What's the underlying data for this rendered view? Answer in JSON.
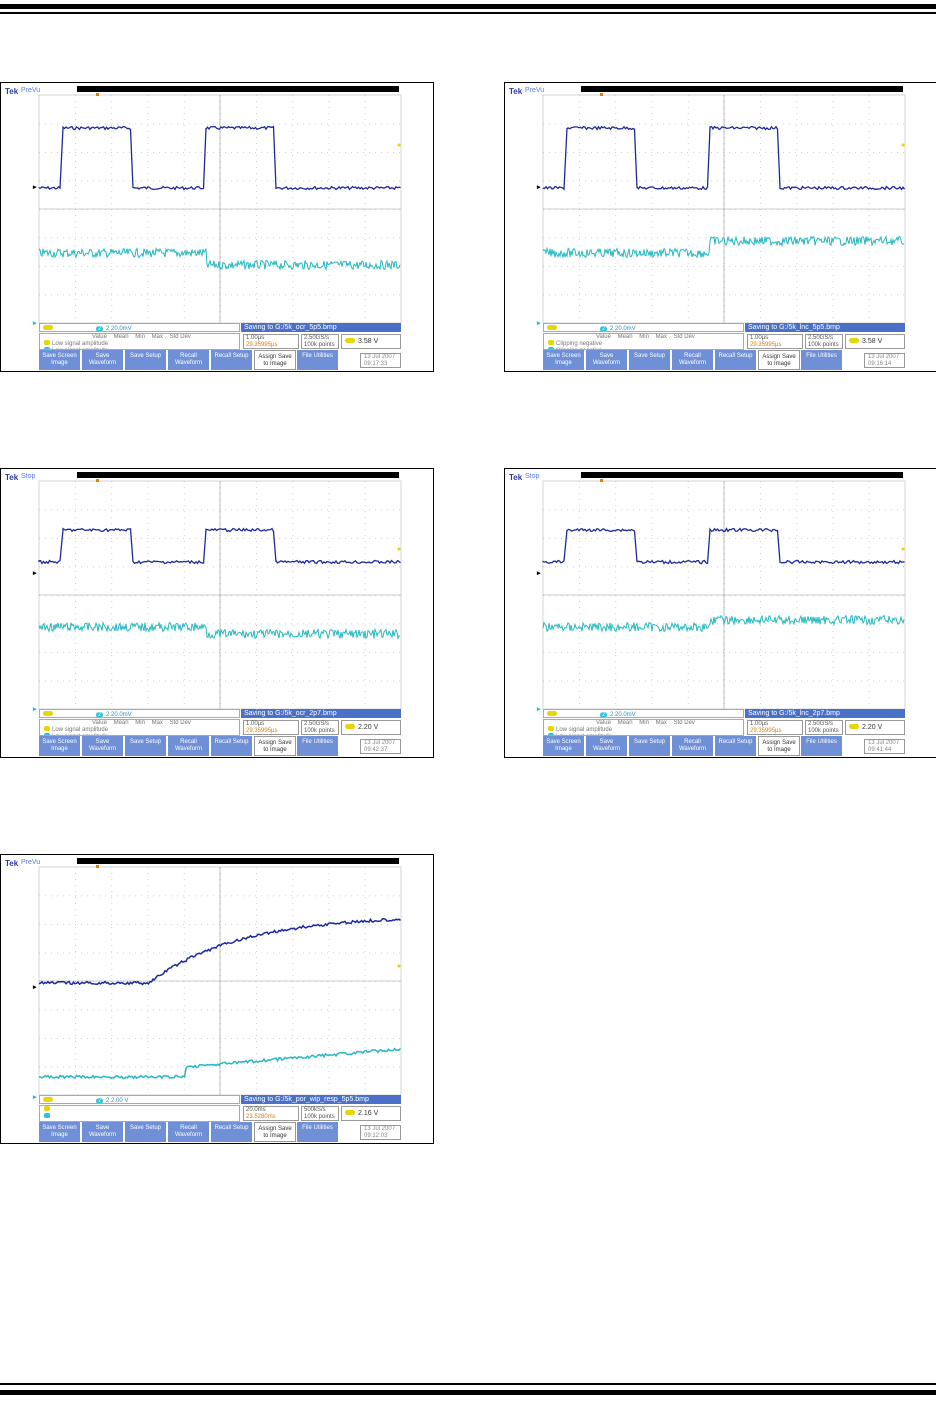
{
  "panels": [
    {
      "id": "p1",
      "brand": "Tek",
      "mode": "PreVu",
      "status_msg": "Saving to G:/5k_ocr_5p5.bmp",
      "ch1_label": "2",
      "ch2_scale": "2 20.0mV",
      "meas_header": "Value    Mean    Min    Max    Std Dev",
      "meas_row1": "Low signal amplitude",
      "meas_row2": "Low signal amplitude",
      "timebase": "1.00µs",
      "trigger_pos": "29.35995µs",
      "sample_rate": "2.50GS/s",
      "record_len": "100k points",
      "trigger_level": "3.58 V",
      "date": "13 Jul 2007",
      "time": "09:17:33",
      "buttons": [
        "Save Screen Image",
        "Save Waveform",
        "Save Setup",
        "Recall Waveform",
        "Recall Setup",
        "Assign Save to Image",
        "File Utilities"
      ]
    },
    {
      "id": "p2",
      "brand": "Tek",
      "mode": "PreVu",
      "status_msg": "Saving to G:/5k_lnc_5p5.bmp",
      "ch1_label": "2",
      "ch2_scale": "2 20.0mV",
      "meas_header": "Value    Mean    Min    Max    Std Dev",
      "meas_row1": "Clipping negative",
      "meas_row2": "Clipping negative",
      "timebase": "1.00µs",
      "trigger_pos": "29.35995µs",
      "sample_rate": "2.50GS/s",
      "record_len": "100k points",
      "trigger_level": "3.58 V",
      "date": "13 Jul 2007",
      "time": "09:16:14",
      "buttons": [
        "Save Screen Image",
        "Save Waveform",
        "Save Setup",
        "Recall Waveform",
        "Recall Setup",
        "Assign Save to Image",
        "File Utilities"
      ]
    },
    {
      "id": "p3",
      "brand": "Tek",
      "mode": "Stop",
      "status_msg": "Saving to G:/5k_ocr_2p7.bmp",
      "ch1_label": "2",
      "ch2_scale": "2 20.0mV",
      "meas_header": "Value    Mean    Min    Max    Std Dev",
      "meas_row1": "Low signal amplitude",
      "meas_row2": "Low signal amplitude",
      "timebase": "1.00µs",
      "trigger_pos": "29.35995µs",
      "sample_rate": "2.50GS/s",
      "record_len": "100k points",
      "trigger_level": "2.20 V",
      "date": "13 Jul 2007",
      "time": "09:42:37",
      "buttons": [
        "Save Screen Image",
        "Save Waveform",
        "Save Setup",
        "Recall Waveform",
        "Recall Setup",
        "Assign Save to Image",
        "File Utilities"
      ]
    },
    {
      "id": "p4",
      "brand": "Tek",
      "mode": "Stop",
      "status_msg": "Saving to G:/5k_lnc_2p7.bmp",
      "ch1_label": "2",
      "ch2_scale": "2 20.0mV",
      "meas_header": "Value    Mean    Min    Max    Std Dev",
      "meas_row1": "Low signal amplitude",
      "meas_row2": "Low signal amplitude",
      "timebase": "1.00µs",
      "trigger_pos": "29.35995µs",
      "sample_rate": "2.50GS/s",
      "record_len": "100k points",
      "trigger_level": "2.20 V",
      "date": "13 Jul 2007",
      "time": "09:41:44",
      "buttons": [
        "Save Screen Image",
        "Save Waveform",
        "Save Setup",
        "Recall Waveform",
        "Recall Setup",
        "Assign Save to Image",
        "File Utilities"
      ]
    },
    {
      "id": "p5",
      "brand": "Tek",
      "mode": "PreVu",
      "status_msg": "Saving to G:/5k_por_wip_resp_5p5.bmp",
      "ch1_label": "2",
      "ch2_scale": "2 2.00 V",
      "meas_header": "",
      "meas_row1": "",
      "meas_row2": "",
      "timebase": "20.0ms",
      "trigger_pos": "23.5280ms",
      "sample_rate": "500kS/s",
      "record_len": "100k points",
      "trigger_level": "2.16 V",
      "date": "13 Jul 2007",
      "time": "09:12:03",
      "buttons": [
        "Save Screen Image",
        "Save Waveform",
        "Save Setup",
        "Recall Waveform",
        "Recall Setup",
        "Assign Save to Image",
        "File Utilities"
      ]
    }
  ],
  "colors": {
    "ch1": "#1c2a9c",
    "ch2": "#26b8c4",
    "status_bar": "#4a70c8",
    "button": "#6f8fd6",
    "trigger": "#e8d600"
  }
}
